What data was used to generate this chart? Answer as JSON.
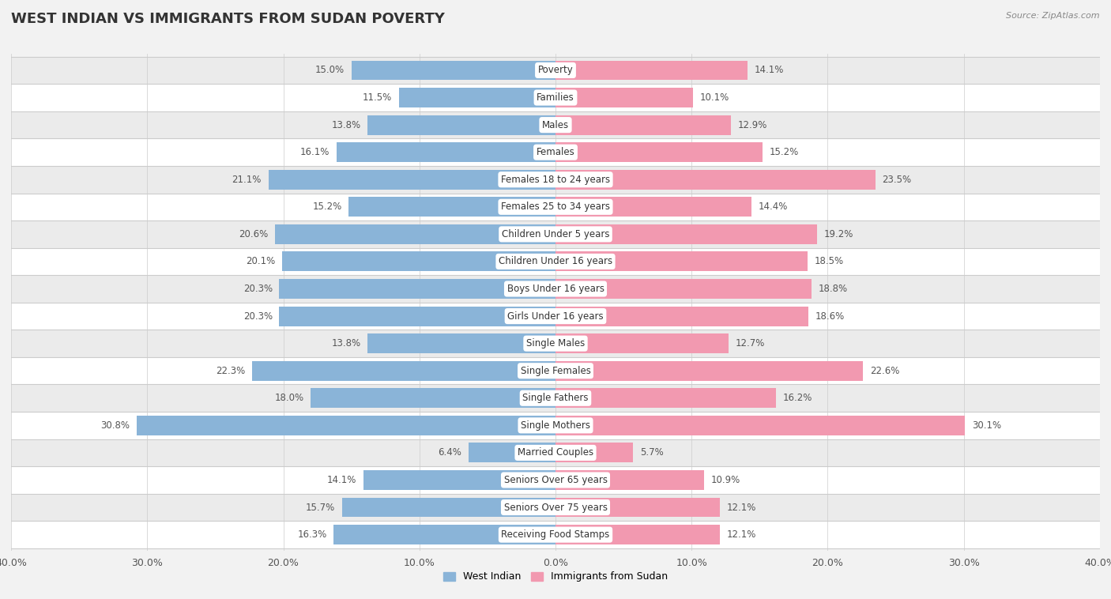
{
  "title": "WEST INDIAN VS IMMIGRANTS FROM SUDAN POVERTY",
  "source": "Source: ZipAtlas.com",
  "categories": [
    "Poverty",
    "Families",
    "Males",
    "Females",
    "Females 18 to 24 years",
    "Females 25 to 34 years",
    "Children Under 5 years",
    "Children Under 16 years",
    "Boys Under 16 years",
    "Girls Under 16 years",
    "Single Males",
    "Single Females",
    "Single Fathers",
    "Single Mothers",
    "Married Couples",
    "Seniors Over 65 years",
    "Seniors Over 75 years",
    "Receiving Food Stamps"
  ],
  "west_indian": [
    15.0,
    11.5,
    13.8,
    16.1,
    21.1,
    15.2,
    20.6,
    20.1,
    20.3,
    20.3,
    13.8,
    22.3,
    18.0,
    30.8,
    6.4,
    14.1,
    15.7,
    16.3
  ],
  "sudan": [
    14.1,
    10.1,
    12.9,
    15.2,
    23.5,
    14.4,
    19.2,
    18.5,
    18.8,
    18.6,
    12.7,
    22.6,
    16.2,
    30.1,
    5.7,
    10.9,
    12.1,
    12.1
  ],
  "west_indian_color": "#8ab4d8",
  "sudan_color": "#f299b0",
  "background_color": "#f2f2f2",
  "row_color_odd": "#ffffff",
  "row_color_even": "#ebebeb",
  "xlim": 40.0,
  "bar_height": 0.72,
  "title_fontsize": 13,
  "label_fontsize": 8.5,
  "tick_fontsize": 9,
  "value_fontsize": 8.5,
  "legend_label_west_indian": "West Indian",
  "legend_label_sudan": "Immigrants from Sudan"
}
